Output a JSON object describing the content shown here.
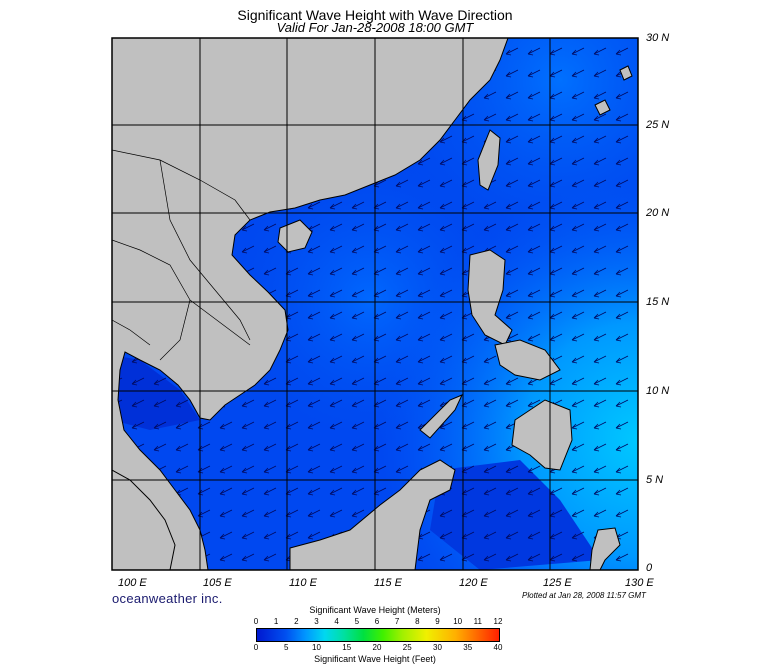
{
  "header": {
    "title": "Significant Wave Height with Wave Direction",
    "valid_time": "Valid For Jan-28-2008 18:00 GMT"
  },
  "map": {
    "lat_labels": [
      "30 N",
      "25 N",
      "20 N",
      "15 N",
      "10 N",
      "5 N",
      "0"
    ],
    "lon_labels": [
      "100 E",
      "105 E",
      "110 E",
      "115 E",
      "120 E",
      "125 E",
      "130 E"
    ],
    "lon_range": [
      100,
      130
    ],
    "lat_range": [
      0,
      30
    ],
    "graticule_step_deg": 5,
    "wave_direction": "northeast monsoon swell toward the southwest",
    "colors": {
      "land": "#c0c0c0",
      "low_wave": "#0040f0",
      "mid_wave": "#0070ff",
      "high_wave": "#00c8ff",
      "coast": "#000000"
    }
  },
  "footer": {
    "brand": "oceanweather inc.",
    "plotted": "Plotted at Jan 28, 2008 11:57 GMT"
  },
  "legend": {
    "meters_title": "Significant Wave Height (Meters)",
    "feet_title": "Significant Wave Height (Feet)",
    "meters_ticks": [
      "0",
      "1",
      "2",
      "3",
      "4",
      "5",
      "6",
      "7",
      "8",
      "9",
      "10",
      "11",
      "12"
    ],
    "feet_ticks": [
      "0",
      "5",
      "10",
      "15",
      "20",
      "25",
      "30",
      "35",
      "40"
    ]
  }
}
